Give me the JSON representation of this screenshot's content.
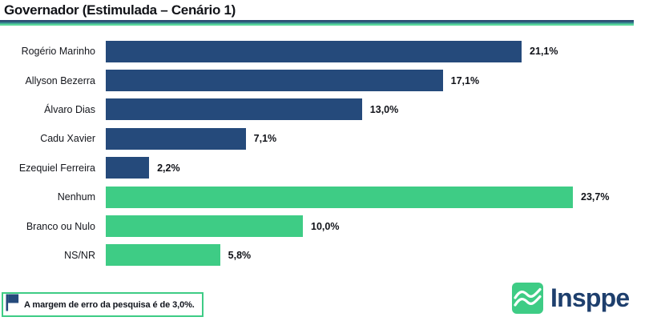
{
  "header": {
    "title": "Governador (Estimulada – Cenário 1)"
  },
  "chart_data": {
    "type": "bar",
    "orientation": "horizontal",
    "title": "Governador (Estimulada – Cenário 1)",
    "unit": "%",
    "xlim": [
      0,
      28
    ],
    "grid": false,
    "legend": "none",
    "categories": [
      "Rogério Marinho",
      "Allyson Bezerra",
      "Álvaro Dias",
      "Cadu Xavier",
      "Ezequiel Ferreira",
      "Nenhum",
      "Branco ou Nulo",
      "NS/NR"
    ],
    "values": [
      21.1,
      17.1,
      13.0,
      7.1,
      2.2,
      23.7,
      10.0,
      5.8
    ],
    "rows": [
      {
        "label": "Rogério Marinho",
        "value": 21.1,
        "value_label": "21,1%",
        "color": "#254a7b"
      },
      {
        "label": "Allyson Bezerra",
        "value": 17.1,
        "value_label": "17,1%",
        "color": "#254a7b"
      },
      {
        "label": "Álvaro Dias",
        "value": 13.0,
        "value_label": "13,0%",
        "color": "#254a7b"
      },
      {
        "label": "Cadu Xavier",
        "value": 7.1,
        "value_label": "7,1%",
        "color": "#254a7b"
      },
      {
        "label": "Ezequiel Ferreira",
        "value": 2.2,
        "value_label": "2,2%",
        "color": "#254a7b"
      },
      {
        "label": "Nenhum",
        "value": 23.7,
        "value_label": "23,7%",
        "color": "#3ecc85"
      },
      {
        "label": "Branco ou Nulo",
        "value": 10.0,
        "value_label": "10,0%",
        "color": "#3ecc85"
      },
      {
        "label": "NS/NR",
        "value": 5.8,
        "value_label": "5,8%",
        "color": "#3ecc85"
      }
    ],
    "colors": {
      "candidate_bar": "#254a7b",
      "other_bar": "#3ecc85",
      "rule_navy": "#2c4d72",
      "rule_teal": "#35878f",
      "rule_green": "#5ad79b"
    }
  },
  "footer": {
    "note": "A margem de erro da pesquisa é de 3,0%.",
    "logo_text": "Insppe"
  }
}
